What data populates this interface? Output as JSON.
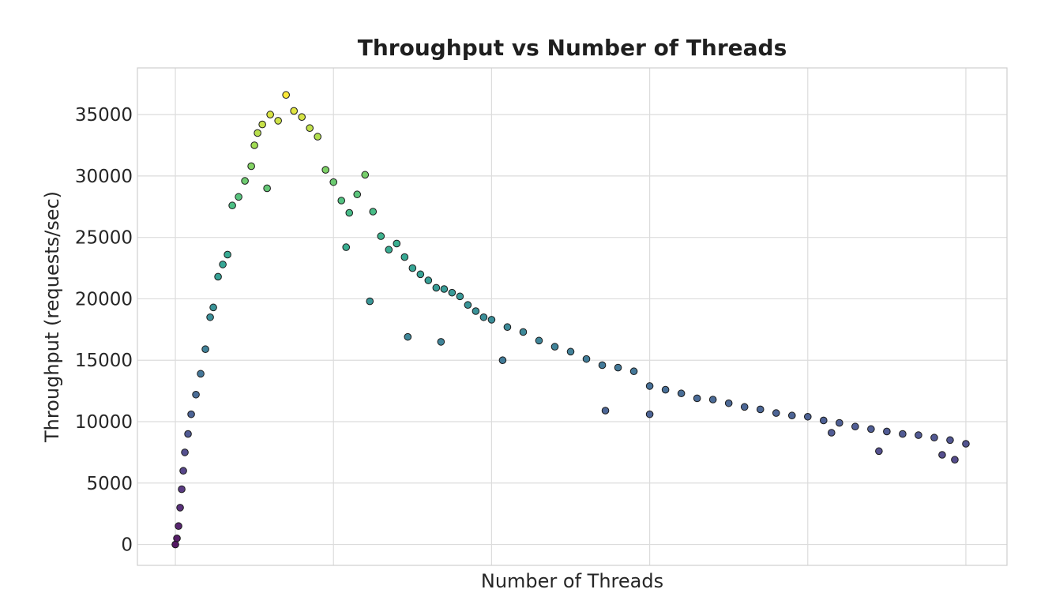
{
  "chart_data": {
    "type": "scatter",
    "title": "Throughput vs Number of Threads",
    "xlabel": "Number of Threads",
    "ylabel": "Throughput (requests/sec)",
    "xlim": [
      -0.24,
      5.26
    ],
    "ylim": [
      -1700,
      38800
    ],
    "y_ticks": [
      0,
      5000,
      10000,
      15000,
      20000,
      25000,
      30000,
      35000
    ],
    "y_tick_labels": [
      "0",
      "5000",
      "10000",
      "15000",
      "20000",
      "25000",
      "30000",
      "35000"
    ],
    "x_gridlines": [
      0,
      1,
      2,
      3,
      4,
      5
    ],
    "x_tick_labels": [],
    "grid": true,
    "colormap": "viridis (color mapped to throughput)",
    "marker_edge_color": "#1a1a1a",
    "series": [
      {
        "points": [
          [
            0.0,
            0
          ],
          [
            0.01,
            500
          ],
          [
            0.02,
            1500
          ],
          [
            0.03,
            3000
          ],
          [
            0.04,
            4500
          ],
          [
            0.05,
            6000
          ],
          [
            0.06,
            7500
          ],
          [
            0.08,
            9000
          ],
          [
            0.1,
            10600
          ],
          [
            0.13,
            12200
          ],
          [
            0.16,
            13900
          ],
          [
            0.19,
            15900
          ],
          [
            0.22,
            18500
          ],
          [
            0.24,
            19300
          ],
          [
            0.27,
            21800
          ],
          [
            0.3,
            22800
          ],
          [
            0.33,
            23600
          ],
          [
            0.36,
            27600
          ],
          [
            0.4,
            28300
          ],
          [
            0.44,
            29600
          ],
          [
            0.48,
            30800
          ],
          [
            0.5,
            32500
          ],
          [
            0.52,
            33500
          ],
          [
            0.55,
            34200
          ],
          [
            0.6,
            35000
          ],
          [
            0.65,
            34500
          ],
          [
            0.7,
            36600
          ],
          [
            0.75,
            35300
          ],
          [
            0.8,
            34800
          ],
          [
            0.85,
            33900
          ],
          [
            0.9,
            33200
          ],
          [
            0.95,
            30500
          ],
          [
            1.0,
            29500
          ],
          [
            1.05,
            28000
          ],
          [
            1.1,
            27000
          ],
          [
            1.15,
            28500
          ],
          [
            1.2,
            30100
          ],
          [
            1.25,
            27100
          ],
          [
            1.3,
            25100
          ],
          [
            1.35,
            24000
          ],
          [
            1.4,
            24500
          ],
          [
            1.45,
            23400
          ],
          [
            1.5,
            22500
          ],
          [
            1.55,
            22000
          ],
          [
            1.6,
            21500
          ],
          [
            1.65,
            20900
          ],
          [
            1.7,
            20800
          ],
          [
            1.75,
            20500
          ],
          [
            1.8,
            20200
          ],
          [
            1.85,
            19500
          ],
          [
            1.9,
            19000
          ],
          [
            1.95,
            18500
          ],
          [
            2.0,
            18300
          ],
          [
            2.1,
            17700
          ],
          [
            2.2,
            17300
          ],
          [
            2.3,
            16600
          ],
          [
            2.4,
            16100
          ],
          [
            2.5,
            15700
          ],
          [
            2.6,
            15100
          ],
          [
            2.7,
            14600
          ],
          [
            2.8,
            14400
          ],
          [
            2.9,
            14100
          ],
          [
            3.0,
            12900
          ],
          [
            3.1,
            12600
          ],
          [
            3.2,
            12300
          ],
          [
            3.3,
            11900
          ],
          [
            3.4,
            11800
          ],
          [
            3.5,
            11500
          ],
          [
            3.6,
            11200
          ],
          [
            3.7,
            11000
          ],
          [
            3.8,
            10700
          ],
          [
            3.9,
            10500
          ],
          [
            4.0,
            10400
          ],
          [
            4.1,
            10100
          ],
          [
            4.2,
            9900
          ],
          [
            4.3,
            9600
          ],
          [
            4.4,
            9400
          ],
          [
            4.5,
            9200
          ],
          [
            4.6,
            9000
          ],
          [
            4.7,
            8900
          ],
          [
            4.8,
            8700
          ],
          [
            4.9,
            8500
          ],
          [
            5.0,
            8200
          ],
          [
            0.58,
            29000
          ],
          [
            1.23,
            19800
          ],
          [
            1.47,
            16900
          ],
          [
            1.68,
            16500
          ],
          [
            1.08,
            24200
          ],
          [
            2.07,
            15000
          ],
          [
            2.72,
            10900
          ],
          [
            3.0,
            10600
          ],
          [
            4.15,
            9100
          ],
          [
            4.45,
            7600
          ],
          [
            4.85,
            7300
          ],
          [
            4.93,
            6900
          ]
        ]
      }
    ]
  }
}
